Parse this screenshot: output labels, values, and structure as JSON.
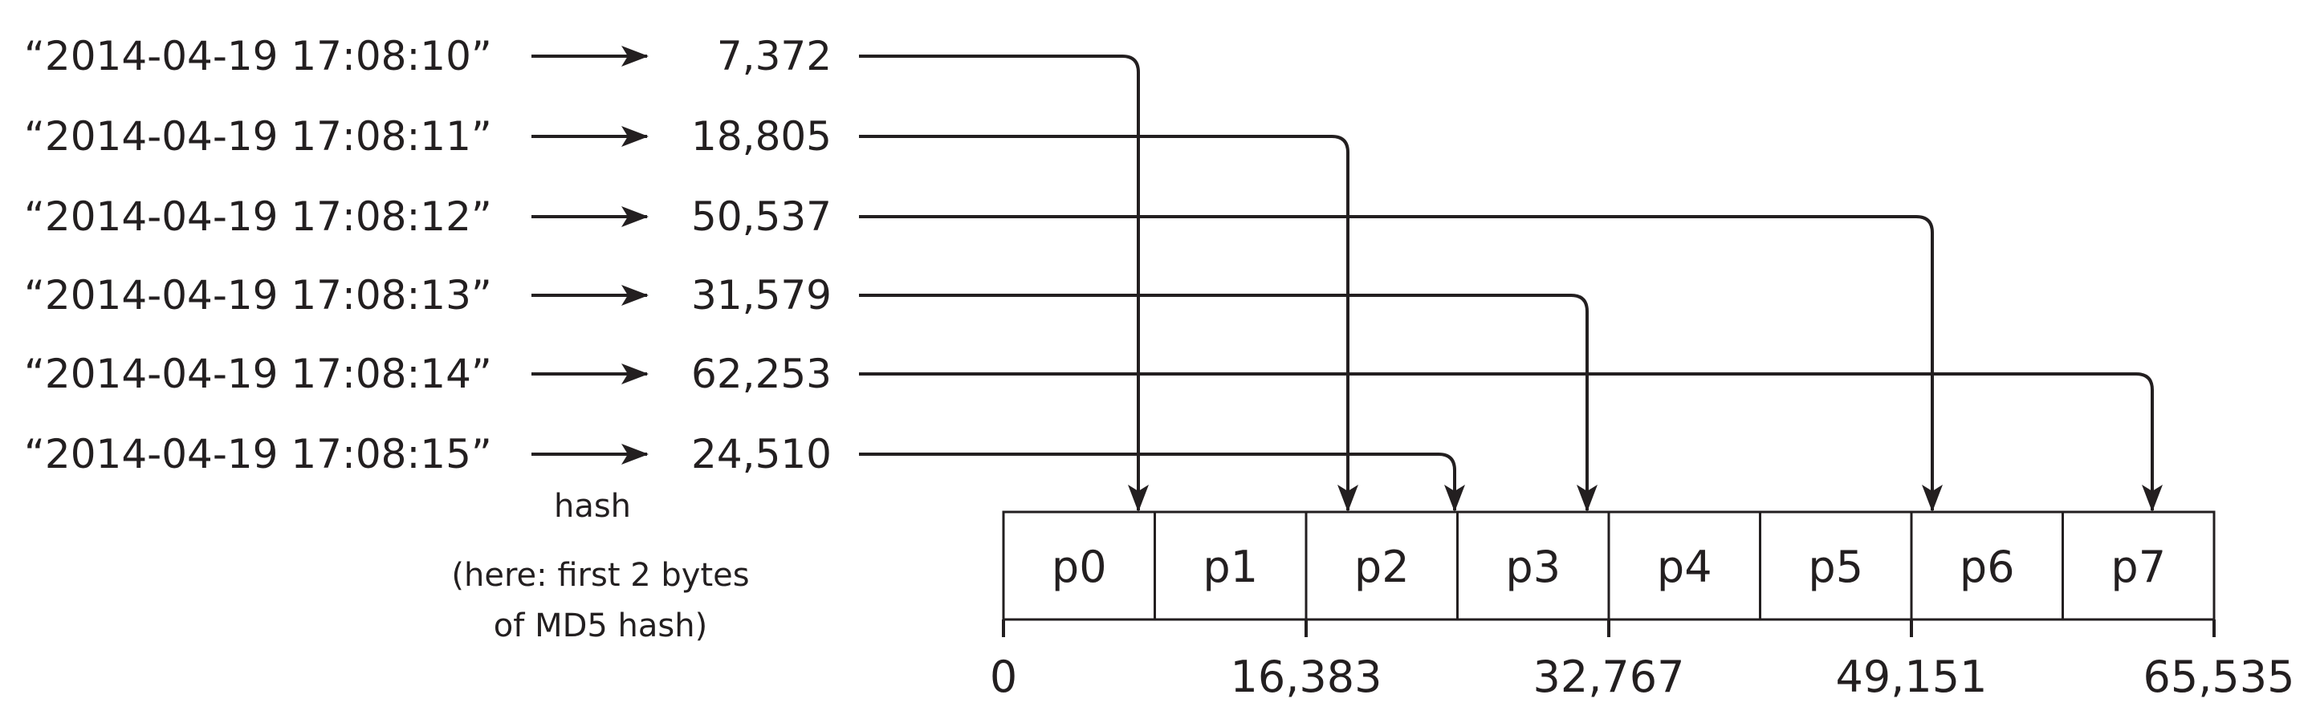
{
  "rows": [
    {
      "key": "“2014-04-19 17:08:10”",
      "hash": "7,372",
      "target_partition": "p0"
    },
    {
      "key": "“2014-04-19 17:08:11”",
      "hash": "18,805",
      "target_partition": "p2"
    },
    {
      "key": "“2014-04-19 17:08:12”",
      "hash": "50,537",
      "target_partition": "p6"
    },
    {
      "key": "“2014-04-19 17:08:13”",
      "hash": "31,579",
      "target_partition": "p3"
    },
    {
      "key": "“2014-04-19 17:08:14”",
      "hash": "62,253",
      "target_partition": "p7"
    },
    {
      "key": "“2014-04-19 17:08:15”",
      "hash": "24,510",
      "target_partition": "p2"
    }
  ],
  "hash_label": "hash",
  "hash_note": [
    "(here: first 2 bytes",
    "of MD5 hash)"
  ],
  "partitions": [
    "p0",
    "p1",
    "p2",
    "p3",
    "p4",
    "p5",
    "p6",
    "p7"
  ],
  "ticks": [
    "0",
    "16,383",
    "32,767",
    "49,151",
    "65,535"
  ],
  "colors": {
    "ink": "#231f20",
    "background": "#ffffff"
  }
}
